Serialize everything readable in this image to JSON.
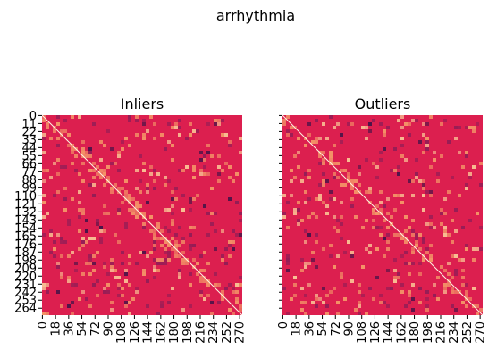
{
  "figure": {
    "suptitle": "arrhythmia"
  },
  "colors": {
    "base": "#dc1f4f",
    "light": "#f6a06a",
    "lighter": "#fbd19a",
    "dark": "#8c1d57",
    "darker": "#3b1348",
    "diagonal": "#fdf2e0"
  },
  "chart_data": [
    {
      "type": "heatmap",
      "title": "Inliers",
      "matrix_size": 274,
      "x_ticks": [
        "0",
        "18",
        "36",
        "54",
        "72",
        "90",
        "108",
        "126",
        "144",
        "162",
        "180",
        "198",
        "216",
        "234",
        "252",
        "270"
      ],
      "y_ticks": [
        "0",
        "11",
        "22",
        "33",
        "44",
        "55",
        "66",
        "77",
        "88",
        "99",
        "110",
        "121",
        "132",
        "143",
        "154",
        "165",
        "176",
        "187",
        "198",
        "209",
        "220",
        "231",
        "242",
        "253",
        "264"
      ],
      "colorbar": false,
      "dominant_color": "#dc1f4f"
    },
    {
      "type": "heatmap",
      "title": "Outliers",
      "matrix_size": 274,
      "x_ticks": [
        "0",
        "18",
        "36",
        "54",
        "72",
        "90",
        "108",
        "126",
        "144",
        "162",
        "180",
        "198",
        "216",
        "234",
        "252",
        "270"
      ],
      "y_ticks": [],
      "colorbar": false,
      "dominant_color": "#dc1f4f"
    }
  ]
}
